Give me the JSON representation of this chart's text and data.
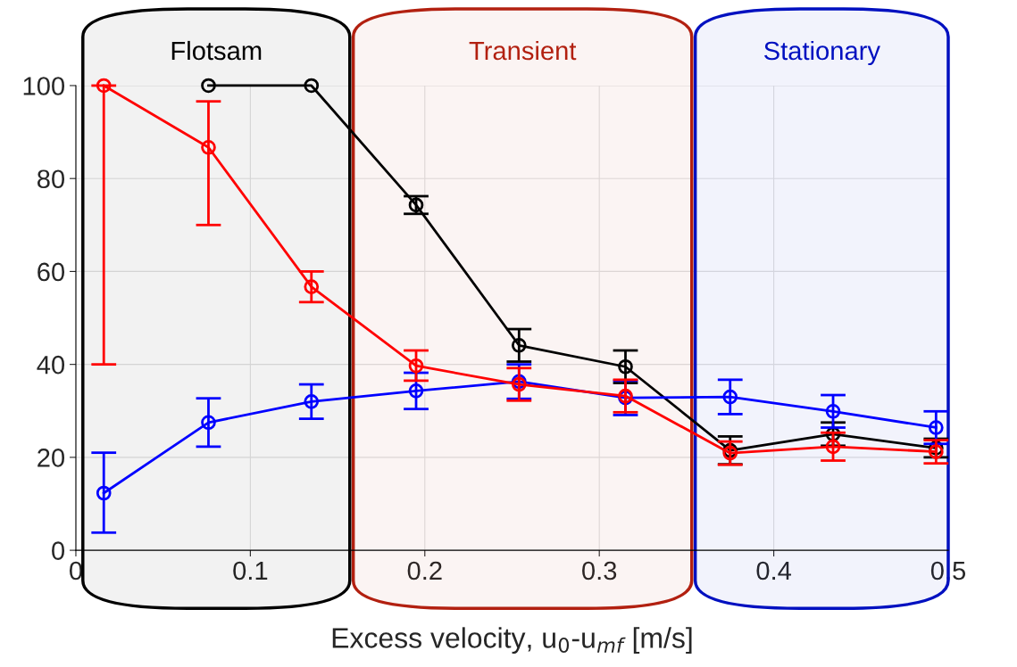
{
  "chart_data": {
    "type": "line",
    "xlabel": "Excess velocity, u$_{0}$-u$_{mf}$ [m/s]",
    "x": [
      0.016,
      0.076,
      0.135,
      0.195,
      0.254,
      0.315,
      0.375,
      0.434,
      0.493
    ],
    "series": [
      {
        "color": "#000000",
        "values": [
          null,
          100,
          100,
          74.3,
          44.1,
          39.5,
          21.5,
          25,
          22
        ],
        "errors": [
          null,
          null,
          null,
          1.9,
          3.5,
          3.5,
          3,
          2.5,
          2
        ]
      },
      {
        "color": "#0000ff",
        "values": [
          12.3,
          27.5,
          32,
          34.3,
          36.3,
          32.8,
          33,
          29.9,
          26.4
        ],
        "errors": [
          [
            3.8,
            21
          ],
          [
            22.3,
            32.7
          ],
          3.7,
          3.9,
          3.7,
          3.7,
          3.7,
          3.5,
          3.5
        ]
      },
      {
        "color": "#ff0000",
        "values": [
          100,
          86.7,
          56.7,
          39.7,
          35.7,
          33.2,
          20.9,
          22.3,
          21.2
        ],
        "errors": [
          [
            40,
            100
          ],
          [
            70,
            96.6
          ],
          [
            53.4,
            60
          ],
          [
            36.5,
            43
          ],
          3.5,
          3.5,
          2.5,
          3,
          2.5
        ]
      }
    ],
    "bands": [
      {
        "axis": "x",
        "from": 0.004,
        "to": 0.157,
        "label": "Flotsam",
        "color": "#000000"
      },
      {
        "axis": "x",
        "from": 0.159,
        "to": 0.353,
        "label": "Transient",
        "color": "#b22010"
      },
      {
        "axis": "x",
        "from": 0.355,
        "to": 0.5,
        "label": "Stationary",
        "color": "#0010c0"
      }
    ],
    "xlim": [
      0,
      0.5
    ],
    "xticks": [
      0,
      0.1,
      0.2,
      0.3,
      0.4,
      0.5
    ],
    "ylim": [
      0,
      100
    ],
    "yticks": [
      0,
      20,
      40,
      60,
      80,
      100
    ],
    "grid": true,
    "marker": "circle",
    "line_style": "solid"
  }
}
